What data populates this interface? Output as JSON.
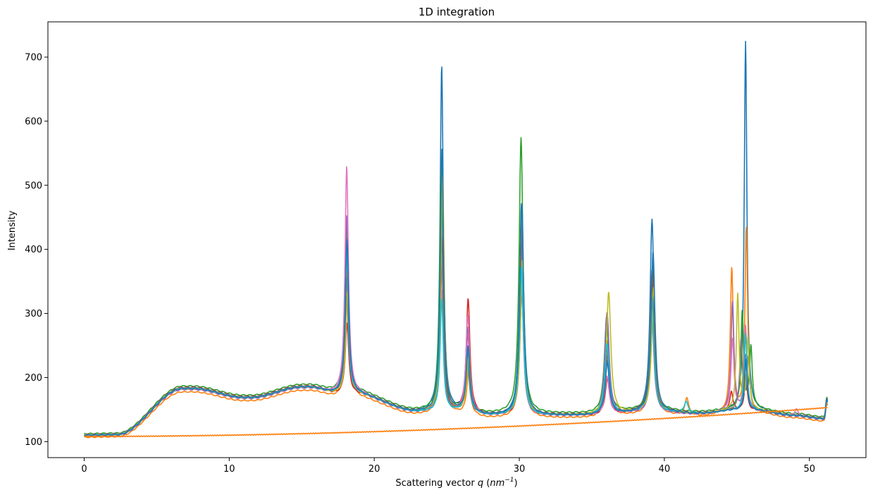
{
  "chart_data": {
    "type": "line",
    "title": "1D integration",
    "xlabel": "Scattering vector q (nm⁻¹)",
    "xlabel_parts": {
      "prefix": "Scattering vector ",
      "var": "q",
      "open": " (",
      "unit": "nm",
      "exp": "−1",
      "close": ")"
    },
    "ylabel": "Intensity",
    "xlim": [
      -2.5,
      53.9
    ],
    "ylim": [
      75,
      755
    ],
    "xticks": [
      0,
      10,
      20,
      30,
      40,
      50
    ],
    "yticks": [
      100,
      200,
      300,
      400,
      500,
      600,
      700
    ],
    "grid": false,
    "legend": "none",
    "series": [
      {
        "color": "#1f77b4",
        "scale": 1.0,
        "shift": 0.0,
        "baseline": 0,
        "peaks": [
          [
            18.1,
            245,
            0.14
          ],
          [
            24.65,
            540,
            0.13
          ],
          [
            26.45,
            130,
            0.15
          ],
          [
            30.15,
            330,
            0.16
          ],
          [
            36.05,
            85,
            0.18
          ],
          [
            39.15,
            300,
            0.16
          ],
          [
            45.6,
            575,
            0.11
          ]
        ]
      },
      {
        "color": "#ff7f0e",
        "scale": 0.97,
        "shift": 0.05,
        "baseline": 0,
        "peaks": [
          [
            18.1,
            200,
            0.14
          ],
          [
            24.65,
            330,
            0.13
          ],
          [
            26.45,
            65,
            0.15
          ],
          [
            30.15,
            260,
            0.16
          ],
          [
            36.05,
            120,
            0.18
          ],
          [
            39.15,
            190,
            0.16
          ],
          [
            41.5,
            28,
            0.15
          ],
          [
            44.6,
            225,
            0.12
          ],
          [
            45.6,
            290,
            0.11
          ]
        ]
      },
      {
        "color": "#2ca02c",
        "scale": 1.02,
        "shift": -0.03,
        "baseline": 0,
        "peaks": [
          [
            18.1,
            260,
            0.14
          ],
          [
            24.65,
            380,
            0.13
          ],
          [
            26.45,
            90,
            0.15
          ],
          [
            30.15,
            430,
            0.16
          ],
          [
            36.05,
            150,
            0.18
          ],
          [
            39.2,
            220,
            0.16
          ],
          [
            45.4,
            150,
            0.11
          ],
          [
            46.0,
            95,
            0.11
          ]
        ]
      },
      {
        "color": "#d62728",
        "scale": 1.0,
        "shift": 0.02,
        "baseline": 0,
        "peaks": [
          [
            18.1,
            110,
            0.14
          ],
          [
            24.65,
            240,
            0.13
          ],
          [
            26.45,
            175,
            0.15
          ],
          [
            30.15,
            190,
            0.16
          ],
          [
            36.05,
            55,
            0.18
          ],
          [
            39.15,
            200,
            0.16
          ],
          [
            44.6,
            30,
            0.12
          ],
          [
            45.6,
            55,
            0.11
          ]
        ]
      },
      {
        "color": "#9467bd",
        "scale": 0.99,
        "shift": 0.0,
        "baseline": 0,
        "peaks": [
          [
            18.1,
            280,
            0.14
          ],
          [
            24.65,
            290,
            0.13
          ],
          [
            26.45,
            120,
            0.15
          ],
          [
            30.15,
            270,
            0.16
          ],
          [
            36.05,
            160,
            0.18
          ],
          [
            39.2,
            150,
            0.16
          ],
          [
            44.7,
            170,
            0.12
          ],
          [
            45.6,
            85,
            0.11
          ]
        ]
      },
      {
        "color": "#8c564b",
        "scale": 1.01,
        "shift": 0.01,
        "baseline": 0,
        "peaks": [
          [
            18.1,
            150,
            0.14
          ],
          [
            24.65,
            270,
            0.13
          ],
          [
            26.45,
            80,
            0.15
          ],
          [
            30.15,
            280,
            0.16
          ],
          [
            36.05,
            90,
            0.18
          ],
          [
            39.15,
            220,
            0.16
          ],
          [
            45.6,
            70,
            0.11
          ]
        ]
      },
      {
        "color": "#e377c2",
        "scale": 1.0,
        "shift": 0.0,
        "baseline": 0,
        "peaks": [
          [
            18.1,
            355,
            0.14
          ],
          [
            24.65,
            190,
            0.13
          ],
          [
            26.45,
            150,
            0.15
          ],
          [
            30.15,
            210,
            0.16
          ],
          [
            36.05,
            60,
            0.18
          ],
          [
            39.15,
            150,
            0.16
          ],
          [
            44.7,
            110,
            0.12
          ],
          [
            45.6,
            130,
            0.11
          ],
          [
            49.1,
            10,
            0.12
          ]
        ]
      },
      {
        "color": "#7f7f7f",
        "scale": 1.0,
        "shift": -0.01,
        "baseline": 0,
        "peaks": [
          [
            18.1,
            180,
            0.14
          ],
          [
            24.65,
            250,
            0.13
          ],
          [
            26.45,
            70,
            0.15
          ],
          [
            30.15,
            300,
            0.16
          ],
          [
            36.05,
            100,
            0.18
          ],
          [
            39.15,
            170,
            0.16
          ],
          [
            45.3,
            110,
            0.11
          ],
          [
            45.8,
            80,
            0.11
          ]
        ]
      },
      {
        "color": "#bcbd22",
        "scale": 1.0,
        "shift": 0.06,
        "baseline": 0,
        "peaks": [
          [
            18.1,
            160,
            0.14
          ],
          [
            24.65,
            370,
            0.13
          ],
          [
            26.45,
            85,
            0.15
          ],
          [
            30.15,
            240,
            0.16
          ],
          [
            36.1,
            190,
            0.18
          ],
          [
            39.2,
            195,
            0.16
          ],
          [
            45.0,
            180,
            0.11
          ],
          [
            45.7,
            110,
            0.11
          ]
        ]
      },
      {
        "color": "#17becf",
        "scale": 1.0,
        "shift": 0.0,
        "baseline": 0,
        "peaks": [
          [
            18.1,
            220,
            0.14
          ],
          [
            24.65,
            175,
            0.13
          ],
          [
            26.45,
            100,
            0.15
          ],
          [
            30.15,
            230,
            0.16
          ],
          [
            36.05,
            110,
            0.18
          ],
          [
            39.15,
            180,
            0.16
          ],
          [
            41.5,
            18,
            0.15
          ],
          [
            45.6,
            120,
            0.11
          ]
        ]
      },
      {
        "color": "#1f77b4",
        "scale": 1.0,
        "shift": 0.02,
        "baseline": 0,
        "peaks": [
          [
            18.1,
            240,
            0.14
          ],
          [
            24.65,
            410,
            0.13
          ],
          [
            26.45,
            100,
            0.15
          ],
          [
            30.15,
            330,
            0.16
          ],
          [
            36.05,
            80,
            0.18
          ],
          [
            39.2,
            250,
            0.16
          ],
          [
            45.6,
            80,
            0.11
          ]
        ]
      },
      {
        "color": "#ff7f0e",
        "scale": 0,
        "shift": 0,
        "baseline": 1,
        "peaks": []
      }
    ]
  }
}
